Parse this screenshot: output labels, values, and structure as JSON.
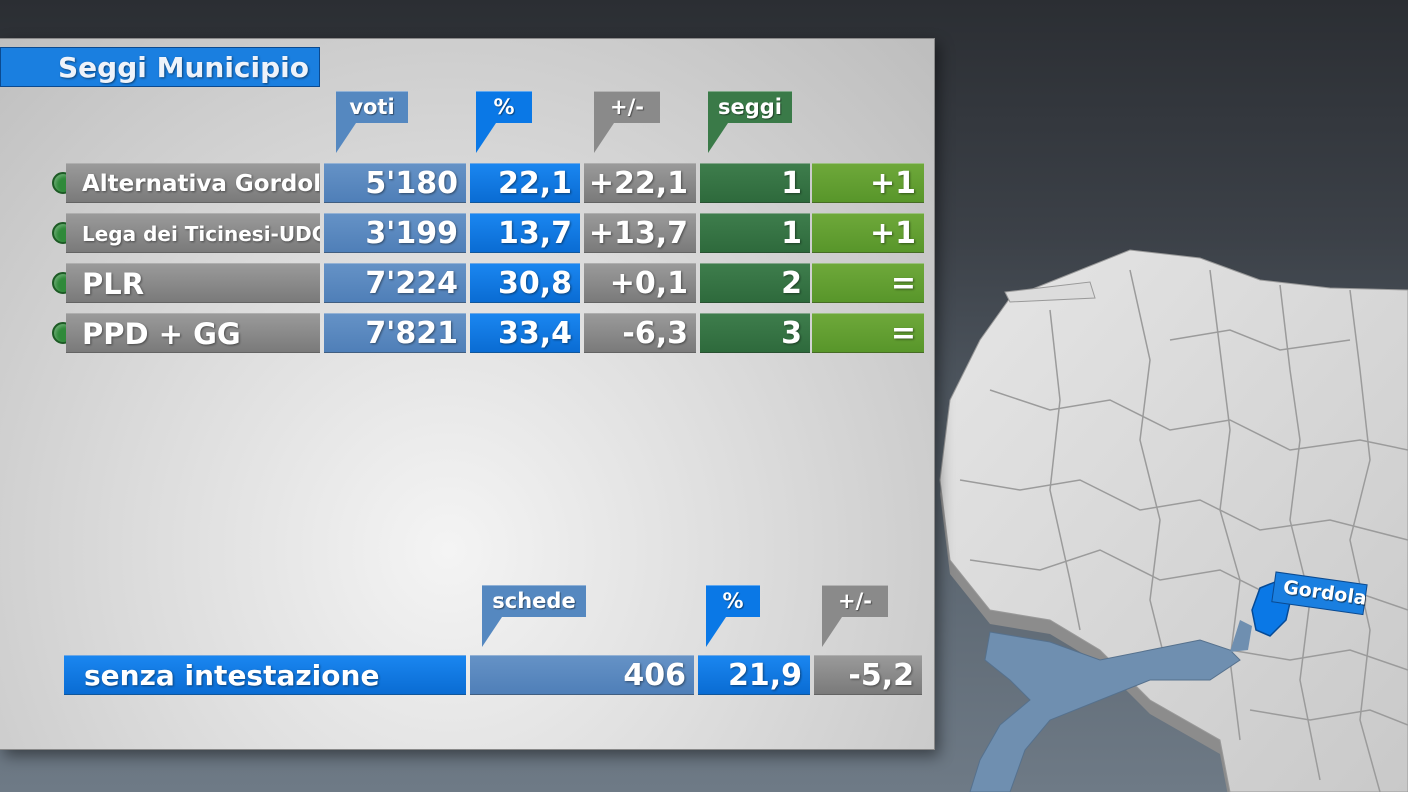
{
  "title": "Seggi Municipio",
  "columns": {
    "voti": "voti",
    "percent": "%",
    "diff": "+/-",
    "seggi": "seggi"
  },
  "rows": [
    {
      "party": "Alternativa Gordola",
      "voti": "5'180",
      "percent": "22,1",
      "diff": "+22,1",
      "seggi": "1",
      "seggi_diff": "+1"
    },
    {
      "party": "Lega dei Ticinesi-UDC",
      "voti": "3'199",
      "percent": "13,7",
      "diff": "+13,7",
      "seggi": "1",
      "seggi_diff": "+1"
    },
    {
      "party": "PLR",
      "voti": "7'224",
      "percent": "30,8",
      "diff": "+0,1",
      "seggi": "2",
      "seggi_diff": "="
    },
    {
      "party": "PPD + GG",
      "voti": "7'821",
      "percent": "33,4",
      "diff": "-6,3",
      "seggi": "3",
      "seggi_diff": "="
    }
  ],
  "footer_columns": {
    "schede": "schede",
    "percent": "%",
    "diff": "+/-"
  },
  "footer": {
    "label": "senza intestazione",
    "schede": "406",
    "percent": "21,9",
    "diff": "-5,2"
  },
  "map": {
    "label": "Gordola"
  },
  "colors": {
    "title_blue": "#1a7fe0",
    "light_blue": "#5588c0",
    "blue": "#0a78e6",
    "gray": "#8a8a8a",
    "dark_green": "#3a7a48",
    "light_green": "#66a032",
    "party_dot": "#2f8a3a",
    "lake": "#6f8fb0"
  }
}
